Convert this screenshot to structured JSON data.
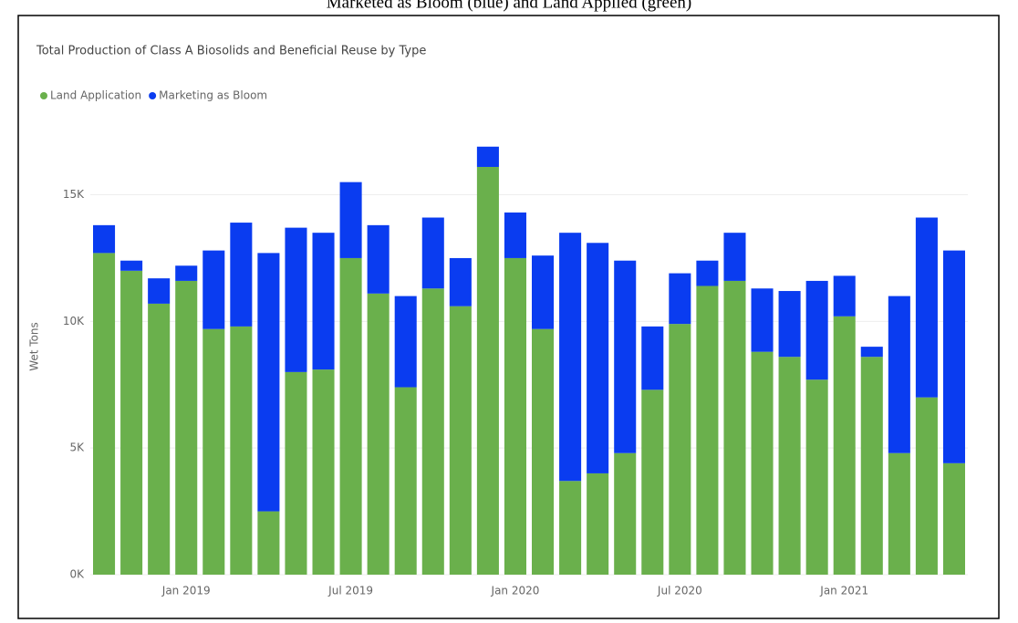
{
  "caption": "Marketed as Bloom (blue) and Land Applied (green)",
  "chart_data": {
    "type": "stacked_bar",
    "title": "Total Production of Class A Biosolids and Beneficial Reuse by Type",
    "y_label": "Wet Tons",
    "categories": [
      null,
      null,
      null,
      "Jan 2019",
      null,
      null,
      null,
      null,
      null,
      "Jul 2019",
      null,
      null,
      null,
      null,
      null,
      "Jan 2020",
      null,
      null,
      null,
      null,
      null,
      "Jul 2020",
      null,
      null,
      null,
      null,
      null,
      "Jan 2021",
      null,
      null,
      null,
      null
    ],
    "series": [
      {
        "name": "Land Application",
        "color": "#6ab04c",
        "values": [
          12700,
          12000,
          10700,
          11600,
          9700,
          9800,
          2500,
          8000,
          8100,
          12500,
          11100,
          7400,
          11300,
          10600,
          16100,
          12500,
          9700,
          3700,
          4000,
          4800,
          7300,
          9900,
          11400,
          11600,
          8800,
          8600,
          7700,
          10200,
          8600,
          4800,
          7000,
          4400
        ]
      },
      {
        "name": "Marketing as Bloom",
        "color": "#0a3cf0",
        "values": [
          1100,
          400,
          1000,
          600,
          3100,
          4100,
          10200,
          5700,
          5400,
          3000,
          2700,
          3600,
          2800,
          1900,
          800,
          1800,
          2900,
          9800,
          9100,
          7600,
          2500,
          2000,
          1000,
          1900,
          2500,
          2600,
          3900,
          1600,
          400,
          6200,
          7100,
          8400
        ]
      }
    ],
    "ylim": [
      0,
      17000
    ],
    "yticks": [
      {
        "value": 0,
        "label": "0K"
      },
      {
        "value": 5000,
        "label": "5K"
      },
      {
        "value": 10000,
        "label": "10K"
      },
      {
        "value": 15000,
        "label": "15K"
      }
    ],
    "grid": true,
    "legend": "top-left"
  }
}
